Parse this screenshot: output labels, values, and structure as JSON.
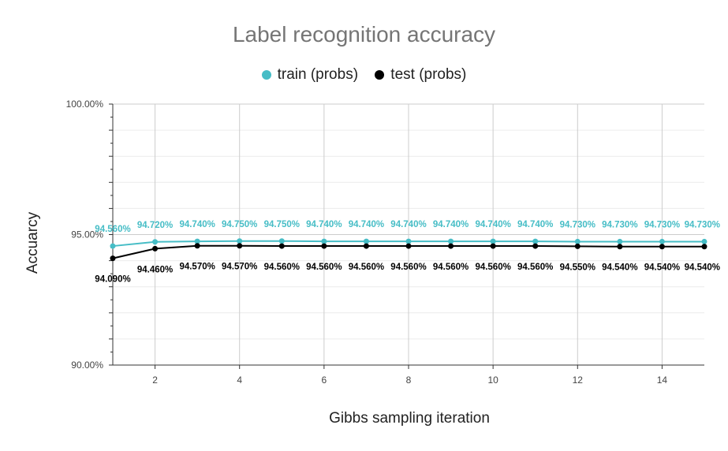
{
  "chart_data": {
    "type": "line",
    "title": "Label recognition accuracy",
    "xlabel": "Gibbs sampling iteration",
    "ylabel": "Accuarcy",
    "xlim": [
      1,
      15
    ],
    "ylim": [
      90,
      100
    ],
    "x_ticks": [
      2,
      4,
      6,
      8,
      10,
      12,
      14
    ],
    "y_ticks": [
      {
        "value": 90,
        "label": "90.00%"
      },
      {
        "value": 95,
        "label": "95.00%"
      },
      {
        "value": 100,
        "label": "100.00%"
      }
    ],
    "legend_position": "top",
    "grid": true,
    "x": [
      1,
      2,
      3,
      4,
      5,
      6,
      7,
      8,
      9,
      10,
      11,
      12,
      13,
      14,
      15
    ],
    "series": [
      {
        "name": "train (probs)",
        "color": "#46bdc6",
        "label_position": "above",
        "values": [
          94.56,
          94.72,
          94.74,
          94.75,
          94.75,
          94.74,
          94.74,
          94.74,
          94.74,
          94.74,
          94.74,
          94.73,
          94.73,
          94.73,
          94.73
        ],
        "labels": [
          "94.560%",
          "94.720%",
          "94.740%",
          "94.750%",
          "94.750%",
          "94.740%",
          "94.740%",
          "94.740%",
          "94.740%",
          "94.740%",
          "94.740%",
          "94.730%",
          "94.730%",
          "94.730%",
          "94.730%"
        ]
      },
      {
        "name": "test (probs)",
        "color": "#000000",
        "label_position": "below",
        "values": [
          94.09,
          94.46,
          94.57,
          94.57,
          94.56,
          94.56,
          94.56,
          94.56,
          94.56,
          94.56,
          94.56,
          94.55,
          94.54,
          94.54,
          94.54
        ],
        "labels": [
          "94.090%",
          "94.460%",
          "94.570%",
          "94.570%",
          "94.560%",
          "94.560%",
          "94.560%",
          "94.560%",
          "94.560%",
          "94.560%",
          "94.560%",
          "94.550%",
          "94.540%",
          "94.540%",
          "94.540%"
        ]
      }
    ]
  }
}
